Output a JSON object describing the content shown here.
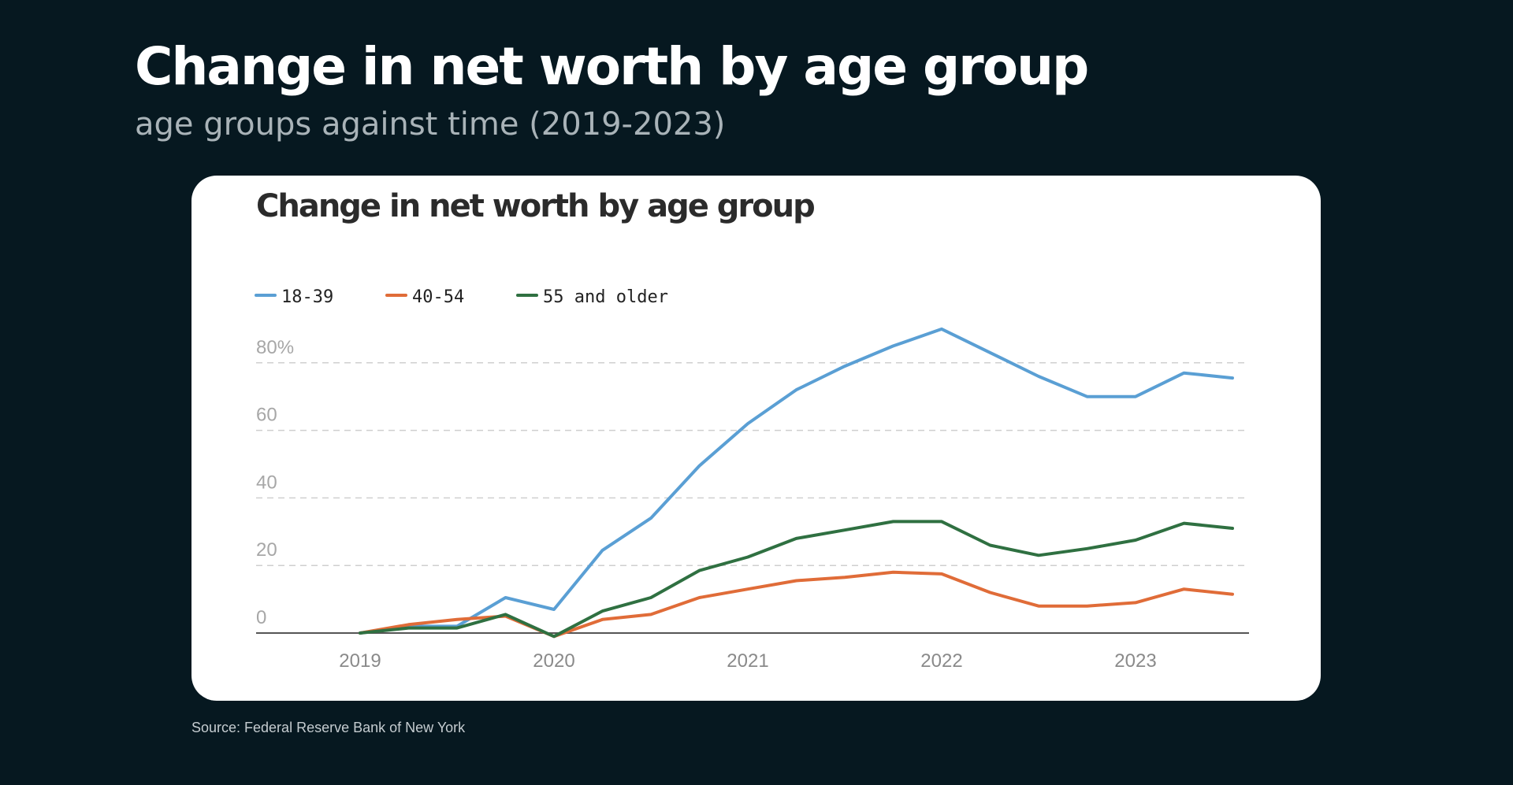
{
  "header": {
    "title": "Change in net worth by age group",
    "subtitle": "age groups against time (2019-2023)"
  },
  "footer": {
    "source": "Source: Federal Reserve Bank of New York"
  },
  "colors": {
    "background": "#061820",
    "card": "#ffffff",
    "axis_text": "#a7a7a7",
    "grid": "#cfcfcf"
  },
  "chart_data": {
    "type": "line",
    "title": "Change in net worth by age group",
    "xlabel": "",
    "ylabel": "",
    "x": [
      "2019-Q1",
      "2019-Q2",
      "2019-Q3",
      "2019-Q4",
      "2020-Q1",
      "2020-Q2",
      "2020-Q3",
      "2020-Q4",
      "2021-Q1",
      "2021-Q2",
      "2021-Q3",
      "2021-Q4",
      "2022-Q1",
      "2022-Q2",
      "2022-Q3",
      "2022-Q4",
      "2023-Q1",
      "2023-Q2",
      "2023-Q3"
    ],
    "x_ticks": [
      "2019",
      "2020",
      "2021",
      "2022",
      "2023"
    ],
    "y_ticks": [
      "0",
      "20",
      "40",
      "60",
      "80%"
    ],
    "y_tick_values": [
      0,
      20,
      40,
      60,
      80
    ],
    "ylim": [
      -2,
      90
    ],
    "grid": true,
    "legend_position": "top-left",
    "series": [
      {
        "name": "18-39",
        "color": "#5a9fd4",
        "values": [
          0,
          2,
          2,
          10.5,
          7,
          24.5,
          34,
          49.5,
          62,
          72,
          79,
          85,
          90,
          83,
          76,
          70,
          70,
          77,
          75.5
        ]
      },
      {
        "name": "40-54",
        "color": "#e06c38",
        "values": [
          0,
          2.5,
          4,
          5,
          -1,
          4,
          5.5,
          10.5,
          13,
          15.5,
          16.5,
          18,
          17.5,
          12,
          8,
          8,
          9,
          13,
          11.5
        ]
      },
      {
        "name": "55 and older",
        "color": "#2f7041",
        "values": [
          0,
          1.5,
          1.5,
          5.5,
          -1,
          6.5,
          10.5,
          18.5,
          22.5,
          28,
          30.5,
          33,
          33,
          26,
          23,
          25,
          27.5,
          32.5,
          31
        ]
      }
    ]
  }
}
